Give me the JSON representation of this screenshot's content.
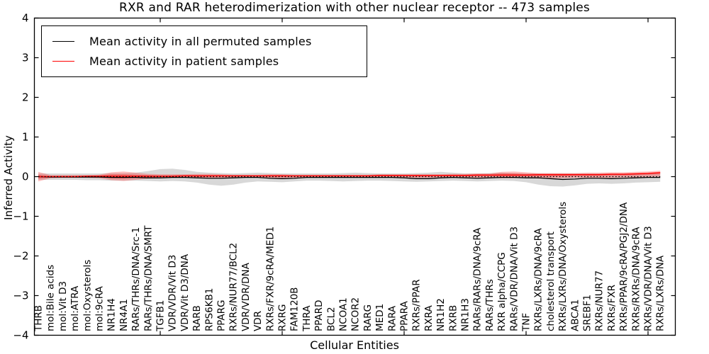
{
  "chart_data": {
    "type": "line",
    "title": "RXR and RAR heterodimerization with other nuclear receptor -- 473 samples",
    "xlabel": "Cellular Entities",
    "ylabel": "Inferred Activity",
    "ylim": [
      -4,
      4
    ],
    "yticks": [
      4,
      3,
      2,
      1,
      0,
      -1,
      -2,
      -3,
      -4
    ],
    "grid": false,
    "legend_position": "upper left",
    "zero_line_style": "dotted",
    "categories": [
      "THRB",
      "mol:Bile acids",
      "mol:Vit D3",
      "mol:ATRA",
      "mol:Oxysterols",
      "mol:9cRA",
      "NR1H4",
      "NR4A1",
      "RARs/THRs/DNA/Src-1",
      "RARs/THRs/DNA/SMRT",
      "TGFB1",
      "VDR/VDR/Vit D3",
      "VDR/Vit D3/DNA",
      "RARB",
      "RPS6KB1",
      "PPARG",
      "RXRs/NUR77/BCL2",
      "VDR/VDR/DNA",
      "VDR",
      "RXRs/FXR/9cRA/MED1",
      "RXRG",
      "FAM120B",
      "THRA",
      "PPARD",
      "BCL2",
      "NCOA1",
      "NCOR2",
      "RARG",
      "MED1",
      "RARA",
      "PPARA",
      "RXRs/PPAR",
      "RXRA",
      "NR1H2",
      "RXRB",
      "NR1H3",
      "RARs/RARs/DNA/9cRA",
      "RARs/THRs",
      "RXR alpha/CCPG",
      "RARs/VDR/DNA/Vit D3",
      "TNF",
      "RXRs/LXRs/DNA/9cRA",
      "cholesterol transport",
      "RXRs/LXRs/DNA/Oxysterols",
      "ABCA1",
      "SREBF1",
      "RXRs/NUR77",
      "RXRs/FXR",
      "RXRs/PPAR/9cRA/PGJ2/DNA",
      "RXRs/RXRs/DNA/9cRA",
      "RXRs/VDR/DNA/Vit D3",
      "RXRs/LXRs/DNA"
    ],
    "series": [
      {
        "name": "Mean activity in all permuted samples",
        "color": "#000000",
        "values": [
          0.0,
          -0.01,
          -0.01,
          -0.01,
          -0.01,
          -0.01,
          -0.02,
          -0.02,
          -0.02,
          -0.03,
          -0.03,
          -0.02,
          -0.02,
          -0.03,
          -0.04,
          -0.04,
          -0.03,
          -0.02,
          -0.02,
          -0.04,
          -0.05,
          -0.04,
          -0.02,
          -0.02,
          -0.02,
          -0.02,
          -0.02,
          -0.02,
          -0.02,
          -0.02,
          -0.03,
          -0.05,
          -0.05,
          -0.03,
          -0.02,
          -0.03,
          -0.04,
          -0.03,
          -0.02,
          -0.02,
          -0.03,
          -0.03,
          -0.05,
          -0.07,
          -0.06,
          -0.04,
          -0.04,
          -0.05,
          -0.04,
          -0.03,
          -0.02,
          -0.02
        ]
      },
      {
        "name": "Mean activity in patient samples",
        "color": "#ff0000",
        "values": [
          0.0,
          0.0,
          0.0,
          0.0,
          0.01,
          0.01,
          0.01,
          0.01,
          0.01,
          0.01,
          0.01,
          0.01,
          0.02,
          0.02,
          0.02,
          0.02,
          0.02,
          0.02,
          0.02,
          0.02,
          0.02,
          0.02,
          0.02,
          0.02,
          0.02,
          0.02,
          0.02,
          0.02,
          0.03,
          0.03,
          0.03,
          0.03,
          0.03,
          0.03,
          0.03,
          0.03,
          0.04,
          0.04,
          0.04,
          0.04,
          0.04,
          0.05,
          0.05,
          0.05,
          0.05,
          0.05,
          0.05,
          0.06,
          0.06,
          0.07,
          0.08,
          0.1
        ]
      }
    ],
    "bands": [
      {
        "name": "permuted-samples-range",
        "color": "#999999",
        "opacity": 0.38,
        "upper": [
          0.08,
          0.08,
          0.08,
          0.08,
          0.08,
          0.08,
          0.09,
          0.09,
          0.1,
          0.14,
          0.19,
          0.2,
          0.17,
          0.12,
          0.1,
          0.09,
          0.08,
          0.09,
          0.1,
          0.09,
          0.08,
          0.08,
          0.08,
          0.08,
          0.08,
          0.09,
          0.1,
          0.09,
          0.08,
          0.08,
          0.08,
          0.09,
          0.1,
          0.12,
          0.1,
          0.08,
          0.08,
          0.09,
          0.1,
          0.09,
          0.08,
          0.08,
          0.08,
          0.08,
          0.08,
          0.08,
          0.08,
          0.08,
          0.08,
          0.08,
          0.08,
          0.08
        ],
        "lower": [
          -0.08,
          -0.08,
          -0.08,
          -0.08,
          -0.09,
          -0.09,
          -0.1,
          -0.1,
          -0.1,
          -0.11,
          -0.12,
          -0.11,
          -0.12,
          -0.15,
          -0.2,
          -0.23,
          -0.2,
          -0.15,
          -0.12,
          -0.13,
          -0.14,
          -0.12,
          -0.1,
          -0.1,
          -0.11,
          -0.12,
          -0.11,
          -0.1,
          -0.1,
          -0.11,
          -0.12,
          -0.13,
          -0.12,
          -0.11,
          -0.1,
          -0.11,
          -0.12,
          -0.11,
          -0.1,
          -0.11,
          -0.14,
          -0.2,
          -0.24,
          -0.25,
          -0.22,
          -0.18,
          -0.17,
          -0.18,
          -0.17,
          -0.15,
          -0.14,
          -0.13
        ]
      },
      {
        "name": "patient-samples-range",
        "color": "#ff0000",
        "opacity": 0.25,
        "upper": [
          0.12,
          0.04,
          0.04,
          0.04,
          0.04,
          0.05,
          0.11,
          0.13,
          0.1,
          0.07,
          0.06,
          0.06,
          0.06,
          0.07,
          0.07,
          0.06,
          0.05,
          0.05,
          0.05,
          0.06,
          0.06,
          0.05,
          0.05,
          0.05,
          0.05,
          0.05,
          0.05,
          0.05,
          0.06,
          0.06,
          0.06,
          0.06,
          0.06,
          0.06,
          0.07,
          0.07,
          0.08,
          0.08,
          0.12,
          0.13,
          0.11,
          0.09,
          0.09,
          0.09,
          0.09,
          0.1,
          0.1,
          0.11,
          0.11,
          0.12,
          0.13,
          0.15
        ],
        "lower": [
          -0.12,
          -0.04,
          -0.03,
          -0.03,
          -0.03,
          -0.04,
          -0.09,
          -0.11,
          -0.08,
          -0.05,
          -0.04,
          -0.03,
          -0.03,
          -0.04,
          -0.04,
          -0.03,
          -0.02,
          -0.02,
          -0.02,
          -0.03,
          -0.04,
          -0.03,
          -0.02,
          -0.02,
          -0.02,
          -0.02,
          -0.02,
          -0.02,
          -0.02,
          -0.02,
          -0.02,
          -0.03,
          -0.03,
          -0.02,
          -0.02,
          -0.02,
          -0.03,
          -0.03,
          -0.04,
          -0.04,
          -0.03,
          -0.05,
          -0.04,
          -0.04,
          -0.03,
          -0.03,
          -0.03,
          -0.03,
          -0.02,
          -0.02,
          -0.01,
          0.0
        ]
      },
      {
        "name": "patient-samples-inner-range",
        "color": "#ff0000",
        "opacity": 0.3,
        "upper": [
          0.05,
          0.02,
          0.02,
          0.02,
          0.02,
          0.03,
          0.06,
          0.06,
          0.05,
          0.04,
          0.03,
          0.03,
          0.04,
          0.04,
          0.04,
          0.04,
          0.03,
          0.03,
          0.03,
          0.04,
          0.04,
          0.03,
          0.03,
          0.03,
          0.03,
          0.03,
          0.03,
          0.03,
          0.04,
          0.04,
          0.04,
          0.04,
          0.04,
          0.04,
          0.05,
          0.05,
          0.06,
          0.06,
          0.08,
          0.08,
          0.07,
          0.07,
          0.07,
          0.07,
          0.07,
          0.07,
          0.07,
          0.08,
          0.08,
          0.09,
          0.1,
          0.12
        ],
        "lower": [
          -0.05,
          -0.02,
          -0.01,
          -0.01,
          -0.01,
          -0.01,
          -0.04,
          -0.05,
          -0.03,
          -0.02,
          -0.01,
          -0.01,
          0.0,
          -0.01,
          -0.01,
          0.0,
          0.0,
          0.0,
          0.0,
          0.0,
          -0.01,
          0.0,
          0.0,
          0.0,
          0.0,
          0.0,
          0.0,
          0.0,
          0.01,
          0.01,
          0.01,
          0.0,
          0.0,
          0.01,
          0.01,
          0.01,
          0.01,
          0.01,
          0.0,
          0.0,
          0.01,
          0.01,
          0.01,
          0.01,
          0.02,
          0.02,
          0.02,
          0.03,
          0.03,
          0.04,
          0.05,
          0.06
        ]
      }
    ]
  }
}
